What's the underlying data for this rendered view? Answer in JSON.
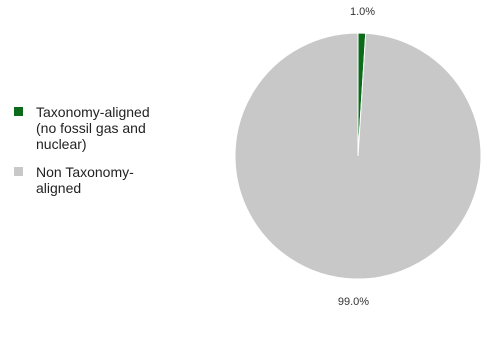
{
  "chart_data": {
    "type": "pie",
    "slices": [
      {
        "label": "Taxonomy-aligned (no fossil gas and nuclear)",
        "value": 1.0,
        "data_label": "1.0%",
        "color": "#0b6b1a"
      },
      {
        "label": "Non Taxonomy-aligned",
        "value": 99.0,
        "data_label": "99.0%",
        "color": "#c8c8c8"
      }
    ],
    "legend_position": "left"
  },
  "legend": {
    "items": [
      {
        "label": "Taxonomy-aligned (no fossil gas and nuclear)",
        "color": "#0b6b1a"
      },
      {
        "label": "Non Taxonomy-aligned",
        "color": "#c8c8c8"
      }
    ]
  }
}
